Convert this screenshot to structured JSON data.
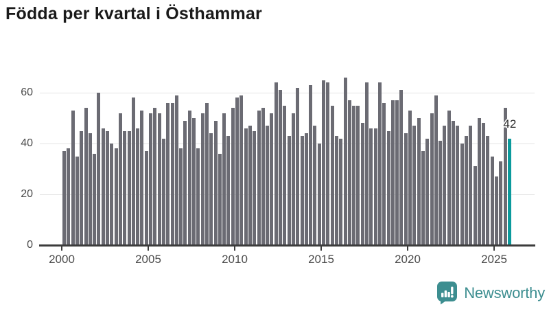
{
  "title": "Födda per kvartal i Östhammar",
  "annotation": {
    "label": "42"
  },
  "branding": {
    "name": "Newsworthy",
    "icon": "speech-bubble-bar-chart-icon"
  },
  "colors": {
    "bar": "#6b6b73",
    "highlight": "#0b9a9c",
    "gridline": "#e4e4e4",
    "axis": "#3c3c3c",
    "axis_text": "#4b4b4b",
    "title_text": "#1a1a1a",
    "brand_teal": "#3d8e90"
  },
  "chart_data": {
    "type": "bar",
    "title": "Födda per kvartal i Östhammar",
    "xlabel": "",
    "ylabel": "",
    "grid": "horizontal",
    "legend": "none",
    "ylim": [
      0,
      68
    ],
    "yticks": [
      0,
      20,
      40,
      60
    ],
    "xticks": [
      2000,
      2005,
      2010,
      2015,
      2020,
      2025
    ],
    "x_start_year": 2000,
    "highlight_index": 103,
    "highlight_label": "42",
    "x": [
      "2000Q1",
      "2000Q2",
      "2000Q3",
      "2000Q4",
      "2001Q1",
      "2001Q2",
      "2001Q3",
      "2001Q4",
      "2002Q1",
      "2002Q2",
      "2002Q3",
      "2002Q4",
      "2003Q1",
      "2003Q2",
      "2003Q3",
      "2003Q4",
      "2004Q1",
      "2004Q2",
      "2004Q3",
      "2004Q4",
      "2005Q1",
      "2005Q2",
      "2005Q3",
      "2005Q4",
      "2006Q1",
      "2006Q2",
      "2006Q3",
      "2006Q4",
      "2007Q1",
      "2007Q2",
      "2007Q3",
      "2007Q4",
      "2008Q1",
      "2008Q2",
      "2008Q3",
      "2008Q4",
      "2009Q1",
      "2009Q2",
      "2009Q3",
      "2009Q4",
      "2010Q1",
      "2010Q2",
      "2010Q3",
      "2010Q4",
      "2011Q1",
      "2011Q2",
      "2011Q3",
      "2011Q4",
      "2012Q1",
      "2012Q2",
      "2012Q3",
      "2012Q4",
      "2013Q1",
      "2013Q2",
      "2013Q3",
      "2013Q4",
      "2014Q1",
      "2014Q2",
      "2014Q3",
      "2014Q4",
      "2015Q1",
      "2015Q2",
      "2015Q3",
      "2015Q4",
      "2016Q1",
      "2016Q2",
      "2016Q3",
      "2016Q4",
      "2017Q1",
      "2017Q2",
      "2017Q3",
      "2017Q4",
      "2018Q1",
      "2018Q2",
      "2018Q3",
      "2018Q4",
      "2019Q1",
      "2019Q2",
      "2019Q3",
      "2019Q4",
      "2020Q1",
      "2020Q2",
      "2020Q3",
      "2020Q4",
      "2021Q1",
      "2021Q2",
      "2021Q3",
      "2021Q4",
      "2022Q1",
      "2022Q2",
      "2022Q3",
      "2022Q4",
      "2023Q1",
      "2023Q2",
      "2023Q3",
      "2023Q4",
      "2024Q1",
      "2024Q2",
      "2024Q3",
      "2024Q4",
      "2025Q1",
      "2025Q2",
      "2025Q3",
      "2025Q4"
    ],
    "values": [
      37,
      38,
      53,
      35,
      45,
      54,
      44,
      36,
      60,
      46,
      45,
      40,
      38,
      52,
      45,
      45,
      58,
      46,
      53,
      37,
      52,
      54,
      52,
      42,
      56,
      56,
      59,
      38,
      49,
      53,
      50,
      38,
      52,
      56,
      44,
      49,
      36,
      52,
      43,
      54,
      58,
      59,
      46,
      47,
      45,
      53,
      54,
      47,
      52,
      64,
      61,
      55,
      43,
      52,
      62,
      43,
      44,
      63,
      47,
      40,
      65,
      64,
      55,
      43,
      42,
      66,
      57,
      55,
      55,
      48,
      64,
      46,
      46,
      64,
      56,
      45,
      57,
      57,
      61,
      44,
      53,
      47,
      50,
      37,
      42,
      52,
      59,
      41,
      47,
      53,
      49,
      47,
      40,
      43,
      47,
      31,
      50,
      48,
      43,
      35,
      27,
      33,
      54,
      42
    ]
  }
}
